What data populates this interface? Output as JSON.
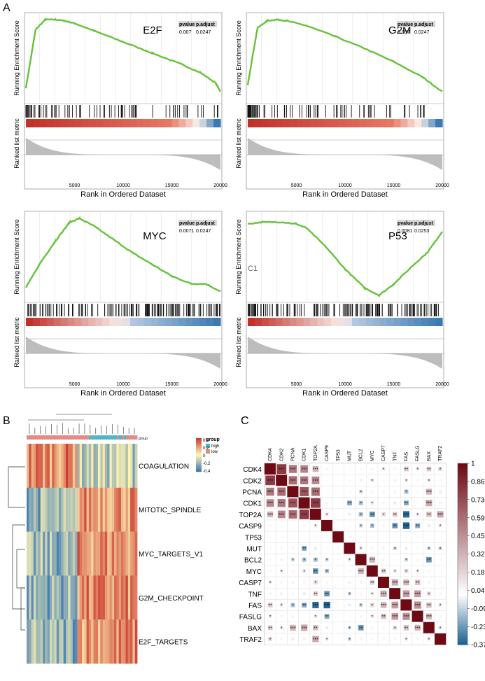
{
  "panel_labels": {
    "a": "A",
    "b": "B",
    "c": "C"
  },
  "gsea_common": {
    "ylabel_top": "Running Enrichment Score",
    "ylabel_bottom": "Ranked list metric",
    "xlabel": "Rank in Ordered Dataset",
    "xticks": [
      "5000",
      "10000",
      "15000",
      "20000"
    ],
    "stats_header": [
      "pvalue",
      "p.adjust"
    ]
  },
  "colors": {
    "curve": "#66c23a",
    "bar": "#111111",
    "fill": "#bdbdbd",
    "red": "#c0312a",
    "blue": "#3b79b3"
  },
  "chart_data": [
    {
      "type": "line",
      "title": "E2F",
      "pvalue": "0.007",
      "p_adjust": "0.0247",
      "x": [
        0,
        1000,
        2000,
        3000,
        4000,
        5000,
        7000,
        10000,
        13000,
        16000,
        18000,
        19500,
        20000
      ],
      "y": [
        0.05,
        0.52,
        0.6,
        0.6,
        0.59,
        0.57,
        0.51,
        0.42,
        0.33,
        0.24,
        0.17,
        0.09,
        0.02
      ],
      "hits_density": "high-left",
      "metric_gradient": "mostly-red"
    },
    {
      "type": "line",
      "title": "G2M",
      "pvalue": "0.007",
      "p_adjust": "0.0247",
      "x": [
        0,
        1000,
        2000,
        3000,
        4000,
        6000,
        9000,
        12000,
        15000,
        18000,
        20000
      ],
      "y": [
        0.08,
        0.55,
        0.61,
        0.62,
        0.61,
        0.57,
        0.48,
        0.38,
        0.27,
        0.14,
        0.02
      ],
      "hits_density": "high-left",
      "metric_gradient": "mostly-red"
    },
    {
      "type": "line",
      "title": "MYC",
      "pvalue": "0.0071",
      "p_adjust": "0.0247",
      "x": [
        0,
        1500,
        3000,
        4500,
        5500,
        7000,
        9000,
        11000,
        13000,
        15000,
        17000,
        18500,
        20000
      ],
      "y": [
        0.02,
        0.15,
        0.26,
        0.36,
        0.38,
        0.34,
        0.27,
        0.2,
        0.14,
        0.08,
        0.04,
        0.04,
        0.0
      ],
      "hits_density": "uniform",
      "metric_gradient": "red-to-blue"
    },
    {
      "type": "line",
      "title": "P53",
      "pvalue": "0.0081",
      "p_adjust": "0.0253",
      "x": [
        0,
        1500,
        3500,
        5000,
        6000,
        8000,
        10000,
        12000,
        13500,
        15000,
        17000,
        18500,
        20000
      ],
      "y": [
        0.02,
        0.03,
        0.03,
        0.02,
        0.0,
        -0.1,
        -0.22,
        -0.32,
        -0.36,
        -0.3,
        -0.2,
        -0.13,
        -0.02
      ],
      "hits_density": "uniform",
      "metric_gradient": "red-to-blue",
      "annotation": "C1"
    },
    {
      "type": "heatmap",
      "label": "B",
      "rows": [
        "COAGULATION",
        "MITOTIC_SPINDLE",
        "MYC_TARGETS_V1",
        "G2M_CHECKPOINT",
        "E2F_TARGETS"
      ],
      "legend_title": "group",
      "groups": [
        "high",
        "low"
      ],
      "group_colors": [
        "#4fb6c8",
        "#e58a85"
      ],
      "scale_ticks": [
        "0.4",
        "0.2",
        "0",
        "-0.2",
        "-0.4"
      ],
      "top_strip_label": "group",
      "pattern": [
        "red-left-blue-right",
        "blue-left-red-right",
        "blue-left-red-right",
        "blue-left-red-right",
        "blue-left-red-right"
      ]
    },
    {
      "type": "heatmap",
      "label": "C",
      "subtype": "correlation",
      "genes": [
        "CDK4",
        "CDK2",
        "PCNA",
        "CDK1",
        "TOP2A",
        "CASP9",
        "TP53",
        "MUT",
        "BCL2",
        "MYC",
        "CASP7",
        "TNF",
        "FAS",
        "FASLG",
        "BAX",
        "TRAF2"
      ],
      "scale_ticks": [
        "1",
        "0.86",
        "0.73",
        "0.59",
        "0.45",
        "0.32",
        "0.18",
        "0.04",
        "-0.09",
        "-0.23",
        "-0.37"
      ],
      "matrix": [
        [
          1,
          0.8,
          0.55,
          0.5,
          0.3,
          0.05,
          0.02,
          0.03,
          0.04,
          0.05,
          0.1,
          0.05,
          0.2,
          0.1,
          0.2,
          0.15
        ],
        [
          0.8,
          1,
          0.6,
          0.55,
          0.5,
          0.03,
          0.02,
          0.05,
          0.06,
          0.1,
          0.05,
          0.06,
          0.1,
          0.05,
          0.1,
          0.05
        ],
        [
          0.55,
          0.6,
          1,
          0.7,
          0.6,
          0.02,
          0.01,
          0.04,
          -0.1,
          0.05,
          0.05,
          0.04,
          -0.15,
          0.05,
          0.3,
          0.08
        ],
        [
          0.5,
          0.55,
          0.7,
          1,
          0.8,
          0.05,
          0.03,
          -0.2,
          -0.15,
          0.1,
          0.05,
          -0.05,
          -0.2,
          0.03,
          0.35,
          0.06
        ],
        [
          0.3,
          0.5,
          0.6,
          0.8,
          1,
          0.1,
          0.02,
          -0.05,
          -0.15,
          -0.25,
          0.15,
          0.2,
          -0.35,
          0.1,
          0.25,
          0.35
        ],
        [
          0.05,
          0.03,
          0.02,
          0.05,
          0.1,
          1,
          0.02,
          0.03,
          -0.1,
          -0.15,
          0.05,
          -0.25,
          -0.37,
          -0.2,
          -0.05,
          0.1
        ],
        [
          0.02,
          0.02,
          0.01,
          0.03,
          0.02,
          0.02,
          1,
          0.05,
          0.03,
          0.02,
          0.01,
          0.02,
          0.03,
          0.02,
          0.01,
          0.02
        ],
        [
          0.03,
          0.05,
          0.04,
          -0.2,
          -0.05,
          0.03,
          0.05,
          1,
          0.1,
          0.05,
          0.06,
          -0.1,
          -0.05,
          0.04,
          -0.1,
          -0.1
        ],
        [
          0.04,
          0.06,
          -0.1,
          -0.15,
          -0.15,
          -0.1,
          0.03,
          0.1,
          1,
          0.3,
          0.05,
          0.04,
          -0.1,
          0.05,
          -0.25,
          0.05
        ],
        [
          0.05,
          0.1,
          0.05,
          0.1,
          -0.25,
          -0.15,
          0.02,
          0.05,
          0.3,
          1,
          0.2,
          0.1,
          0.15,
          0.1,
          0.05,
          0.04
        ],
        [
          0.1,
          0.05,
          0.05,
          0.05,
          0.15,
          0.05,
          0.01,
          0.06,
          0.05,
          0.2,
          1,
          0.35,
          0.3,
          0.25,
          0.05,
          0.05
        ],
        [
          0.05,
          0.06,
          0.04,
          -0.05,
          0.2,
          -0.25,
          0.02,
          -0.1,
          0.04,
          0.1,
          0.35,
          1,
          0.4,
          0.4,
          0.15,
          0.05
        ],
        [
          0.2,
          0.1,
          -0.15,
          -0.2,
          -0.35,
          -0.37,
          0.03,
          -0.05,
          -0.1,
          0.15,
          0.3,
          0.4,
          1,
          0.45,
          0.25,
          0.1
        ],
        [
          0.1,
          0.05,
          0.05,
          0.03,
          0.1,
          -0.2,
          0.02,
          0.04,
          0.05,
          0.1,
          0.25,
          0.4,
          0.45,
          1,
          0.3,
          0.05
        ],
        [
          0.2,
          0.1,
          0.3,
          0.35,
          0.25,
          -0.05,
          0.01,
          -0.1,
          -0.25,
          0.05,
          0.05,
          0.15,
          0.25,
          0.3,
          1,
          0.1
        ],
        [
          0.15,
          0.05,
          0.08,
          0.06,
          0.35,
          0.1,
          0.02,
          -0.1,
          0.05,
          0.04,
          0.05,
          0.05,
          0.1,
          0.05,
          0.1,
          1
        ]
      ]
    }
  ]
}
